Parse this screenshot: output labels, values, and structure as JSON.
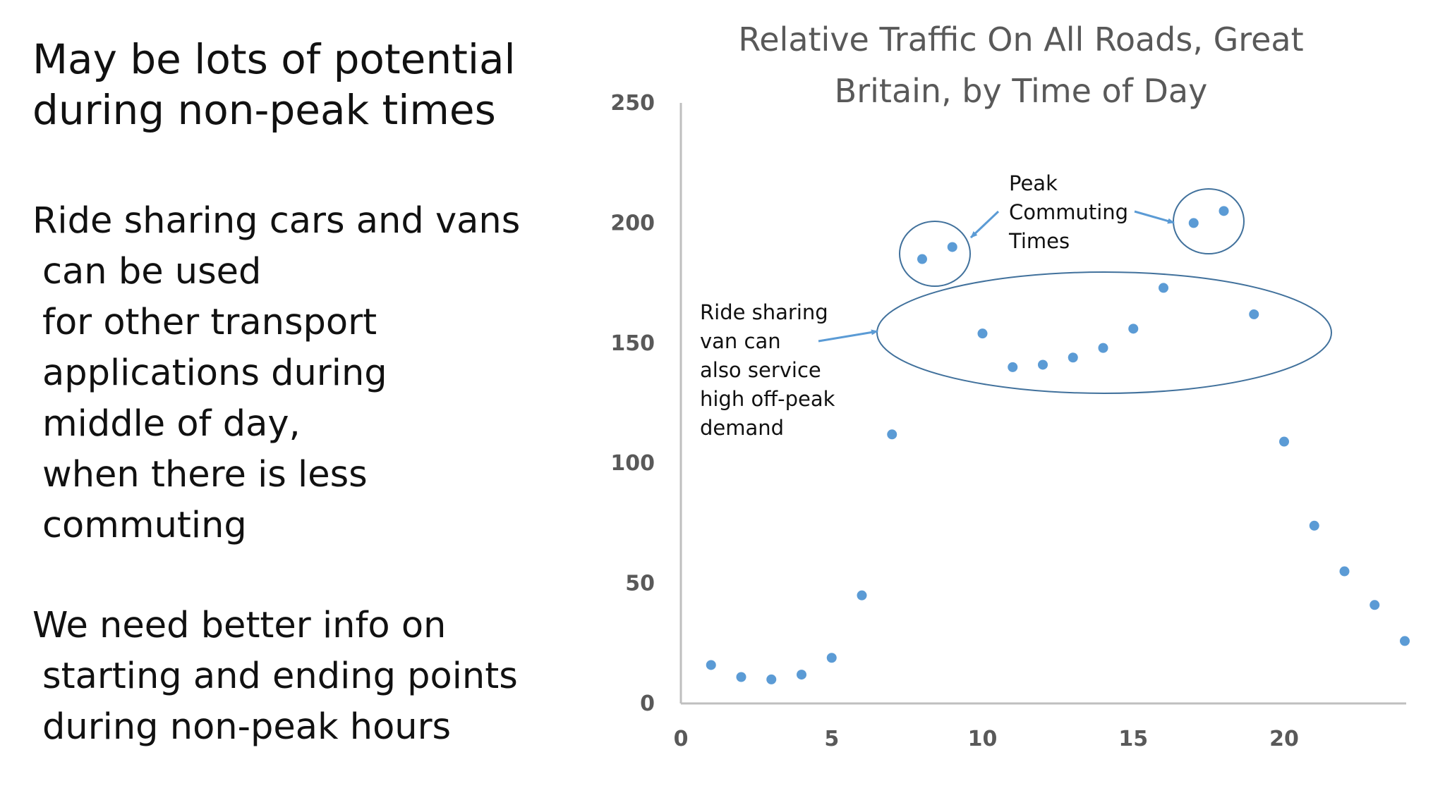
{
  "slide": {
    "heading_lines": [
      "May be lots of potential",
      "during non-peak times"
    ],
    "paragraph1_lines": [
      "Ride sharing cars and vans",
      "can be used",
      "for other transport",
      "applications during",
      "middle of day,",
      "when there is less",
      "commuting"
    ],
    "paragraph2_lines": [
      "We need better info on",
      "starting and ending points",
      "during non-peak hours"
    ]
  },
  "chart_data": {
    "type": "scatter",
    "title": "Relative Traffic On All Roads, Great Britain, by Time of Day",
    "title_lines": [
      "Relative Traffic On All Roads, Great",
      "Britain, by Time of Day"
    ],
    "xlabel": "",
    "ylabel": "",
    "xlim": [
      0,
      24
    ],
    "ylim": [
      0,
      250
    ],
    "x_ticks": [
      0,
      5,
      10,
      15,
      20
    ],
    "y_ticks": [
      0,
      50,
      100,
      150,
      200,
      250
    ],
    "grid": false,
    "series": [
      {
        "name": "Relative traffic",
        "color": "#5b9bd5",
        "x": [
          1,
          2,
          3,
          4,
          5,
          6,
          7,
          8,
          9,
          10,
          11,
          12,
          13,
          14,
          15,
          16,
          17,
          18,
          19,
          20,
          21,
          22,
          23,
          24
        ],
        "y": [
          16,
          11,
          10,
          12,
          19,
          45,
          112,
          185,
          190,
          154,
          140,
          141,
          144,
          148,
          156,
          173,
          200,
          205,
          162,
          109,
          74,
          55,
          41,
          26
        ]
      }
    ],
    "annotations": {
      "peak_label_lines": [
        "Peak",
        "Commuting",
        "Times"
      ],
      "offpeak_label_lines": [
        "Ride sharing",
        "van can",
        "also service",
        "high off-peak",
        "demand"
      ]
    },
    "colors": {
      "points": "#5b9bd5",
      "ellipse": "#41719c",
      "arrow": "#5b9bd5",
      "axis": "#bfbfbf",
      "tick_text": "#595959",
      "title_text": "#595959"
    }
  }
}
